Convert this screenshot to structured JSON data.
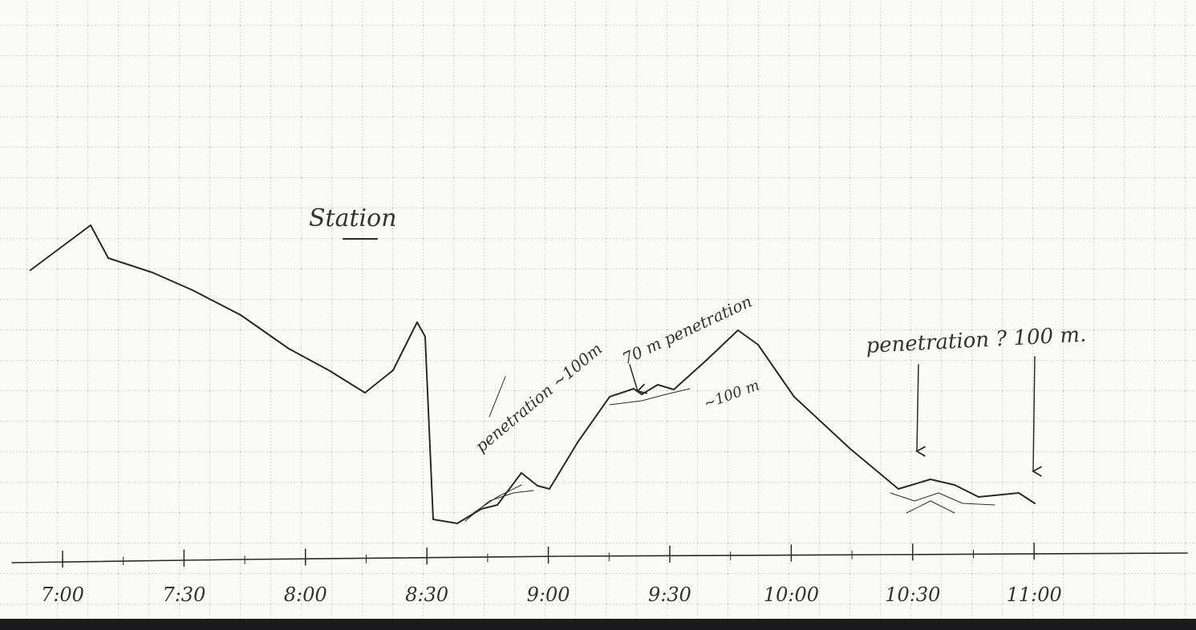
{
  "title": "Station",
  "annotations": [
    "penetration ~100m",
    "70 m penetration",
    "~100 m",
    "penetration ? 100 m."
  ],
  "axis": {
    "labels": [
      "7:00",
      "7:30",
      "8:00",
      "8:30",
      "9:00",
      "9:30",
      "10:00",
      "10:30",
      "11:00"
    ]
  }
}
